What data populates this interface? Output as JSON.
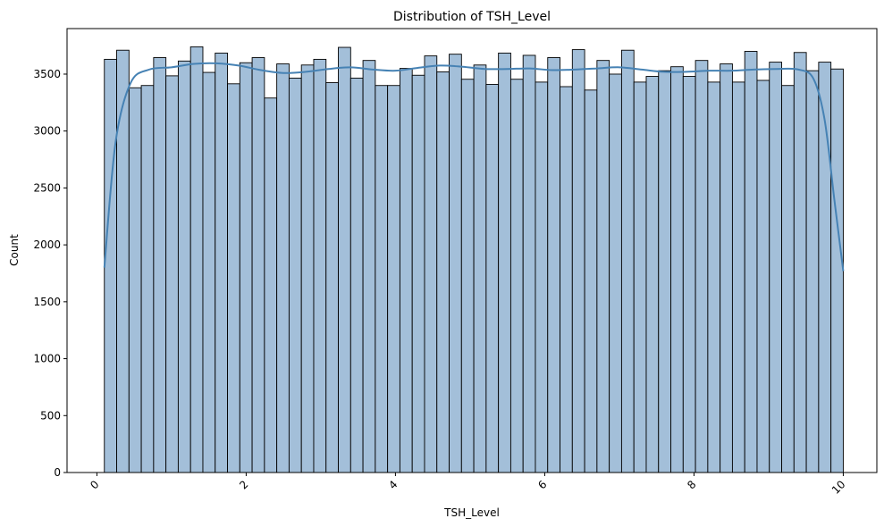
{
  "chart_data": {
    "type": "bar",
    "title": "Distribution of TSH_Level",
    "xlabel": "TSH_Level",
    "ylabel": "Count",
    "xlim": [
      -0.4,
      10.45
    ],
    "ylim": [
      0,
      3900
    ],
    "x_ticks": [
      0,
      2,
      4,
      6,
      8,
      10
    ],
    "x_tick_labels": [
      "0",
      "2",
      "4",
      "6",
      "8",
      "10"
    ],
    "y_ticks": [
      0,
      500,
      1000,
      1500,
      2000,
      2500,
      3000,
      3500
    ],
    "y_tick_labels": [
      "0",
      "500",
      "1000",
      "1500",
      "2000",
      "2500",
      "3000",
      "3500"
    ],
    "bin_start": 0.1,
    "bin_end": 10.0,
    "bins": 60,
    "values": [
      3630,
      3710,
      3380,
      3400,
      3645,
      3485,
      3615,
      3740,
      3515,
      3685,
      3415,
      3600,
      3645,
      3290,
      3590,
      3465,
      3580,
      3630,
      3425,
      3735,
      3465,
      3620,
      3400,
      3400,
      3550,
      3490,
      3660,
      3520,
      3675,
      3455,
      3580,
      3410,
      3685,
      3455,
      3665,
      3430,
      3645,
      3390,
      3715,
      3360,
      3620,
      3500,
      3710,
      3430,
      3480,
      3530,
      3565,
      3480,
      3620,
      3430,
      3590,
      3430,
      3700,
      3445,
      3605,
      3400,
      3690,
      3530,
      3605,
      3545
    ],
    "kde": {
      "x": [
        0.1,
        0.25,
        0.45,
        0.7,
        1.0,
        1.3,
        1.6,
        1.9,
        2.2,
        2.5,
        2.8,
        3.1,
        3.4,
        3.7,
        4.0,
        4.3,
        4.6,
        4.9,
        5.2,
        5.5,
        5.8,
        6.1,
        6.4,
        6.7,
        7.0,
        7.3,
        7.6,
        7.9,
        8.2,
        8.5,
        8.8,
        9.1,
        9.4,
        9.6,
        9.75,
        9.88,
        10.0
      ],
      "y": [
        1800,
        2900,
        3420,
        3540,
        3560,
        3590,
        3595,
        3575,
        3535,
        3510,
        3520,
        3545,
        3560,
        3540,
        3530,
        3555,
        3575,
        3565,
        3545,
        3545,
        3550,
        3535,
        3540,
        3550,
        3560,
        3540,
        3520,
        3520,
        3530,
        3530,
        3540,
        3545,
        3540,
        3460,
        3100,
        2400,
        1770
      ]
    },
    "bar_color": "#a3bfd9",
    "bar_edge_color": "#000000",
    "kde_color": "#4682b4",
    "grid": false,
    "legend": "none"
  }
}
